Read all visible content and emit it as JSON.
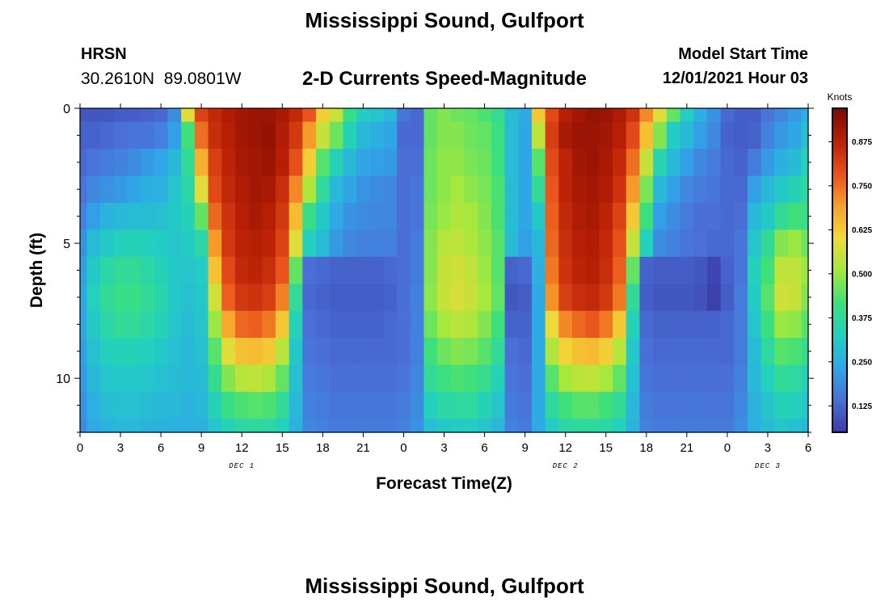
{
  "header": {
    "title": "Mississippi Sound, Gulfport",
    "station": "HRSN",
    "coordinates": "30.2610N  89.0801W",
    "subtitle": "2-D Currents Speed-Magnitude",
    "model_start_label": "Model Start Time",
    "model_start_value": "12/01/2021 Hour 03"
  },
  "footer": {
    "title": "Mississippi Sound, Gulfport"
  },
  "colors": {
    "colormap": [
      "#3b3aa6",
      "#4a70d8",
      "#2fa8e8",
      "#22d0c0",
      "#3de07a",
      "#a6e83c",
      "#f2d93a",
      "#f7a02a",
      "#e8501b",
      "#b81f05",
      "#7a0a02"
    ]
  },
  "chart_data": {
    "type": "heatmap",
    "xlabel": "Forecast Time(Z)",
    "ylabel": "Depth (ft)",
    "colorbar_label": "Knots",
    "x_range": [
      0,
      54
    ],
    "y_range": [
      0,
      12
    ],
    "y_inverted": true,
    "x_tick_labels": [
      "0",
      "3",
      "6",
      "9",
      "12",
      "15",
      "18",
      "21",
      "0",
      "3",
      "6",
      "9",
      "12",
      "15",
      "18",
      "21",
      "0",
      "3",
      "6"
    ],
    "y_tick_labels": [
      "0",
      "5",
      "10"
    ],
    "date_labels": [
      {
        "label": "DEC 1",
        "hour": 12
      },
      {
        "label": "DEC 2",
        "hour": 36
      },
      {
        "label": "DEC 3",
        "hour": 51
      }
    ],
    "colorbar_range": [
      0.05,
      0.97
    ],
    "colorbar_ticks": [
      "0.125",
      "0.250",
      "0.375",
      "0.500",
      "0.625",
      "0.750",
      "0.875"
    ],
    "colorbar_tick_values": [
      0.125,
      0.25,
      0.375,
      0.5,
      0.625,
      0.75,
      0.875
    ],
    "depths_ft": [
      0,
      1,
      2,
      3,
      4,
      5,
      6,
      7,
      8,
      9,
      10,
      11,
      12
    ],
    "hours": [
      0,
      1,
      2,
      3,
      4,
      5,
      6,
      7,
      8,
      9,
      10,
      11,
      12,
      13,
      14,
      15,
      16,
      17,
      18,
      19,
      20,
      21,
      22,
      23,
      24,
      25,
      26,
      27,
      28,
      29,
      30,
      31,
      32,
      33,
      34,
      35,
      36,
      37,
      38,
      39,
      40,
      41,
      42,
      43,
      44,
      45,
      46,
      47,
      48,
      49,
      50,
      51,
      52,
      53,
      54
    ],
    "speed_knots": [
      [
        0.1,
        0.1,
        0.1,
        0.11,
        0.11,
        0.12,
        0.13,
        0.19,
        0.58,
        0.81,
        0.86,
        0.89,
        0.91,
        0.92,
        0.92,
        0.9,
        0.86,
        0.78,
        0.62,
        0.55,
        0.4,
        0.32,
        0.3,
        0.27,
        0.15,
        0.13,
        0.45,
        0.48,
        0.46,
        0.45,
        0.43,
        0.39,
        0.28,
        0.24,
        0.63,
        0.8,
        0.88,
        0.91,
        0.93,
        0.92,
        0.89,
        0.84,
        0.72,
        0.58,
        0.45,
        0.32,
        0.25,
        0.2,
        0.13,
        0.11,
        0.11,
        0.15,
        0.18,
        0.21,
        0.25
      ],
      [
        0.12,
        0.12,
        0.13,
        0.14,
        0.15,
        0.15,
        0.17,
        0.22,
        0.42,
        0.75,
        0.85,
        0.88,
        0.91,
        0.92,
        0.93,
        0.89,
        0.83,
        0.7,
        0.55,
        0.46,
        0.34,
        0.27,
        0.25,
        0.23,
        0.13,
        0.13,
        0.45,
        0.48,
        0.48,
        0.46,
        0.45,
        0.41,
        0.28,
        0.23,
        0.54,
        0.82,
        0.9,
        0.92,
        0.92,
        0.91,
        0.88,
        0.8,
        0.64,
        0.48,
        0.32,
        0.27,
        0.22,
        0.18,
        0.12,
        0.11,
        0.12,
        0.17,
        0.21,
        0.23,
        0.29
      ],
      [
        0.13,
        0.15,
        0.16,
        0.17,
        0.19,
        0.21,
        0.23,
        0.27,
        0.38,
        0.67,
        0.82,
        0.87,
        0.9,
        0.91,
        0.92,
        0.88,
        0.79,
        0.62,
        0.44,
        0.34,
        0.27,
        0.23,
        0.22,
        0.21,
        0.14,
        0.14,
        0.46,
        0.49,
        0.49,
        0.47,
        0.46,
        0.41,
        0.28,
        0.23,
        0.44,
        0.8,
        0.87,
        0.91,
        0.92,
        0.9,
        0.86,
        0.75,
        0.55,
        0.35,
        0.27,
        0.22,
        0.18,
        0.16,
        0.13,
        0.12,
        0.16,
        0.21,
        0.25,
        0.28,
        0.33
      ],
      [
        0.15,
        0.18,
        0.2,
        0.21,
        0.23,
        0.25,
        0.26,
        0.3,
        0.36,
        0.58,
        0.8,
        0.86,
        0.89,
        0.91,
        0.9,
        0.85,
        0.72,
        0.52,
        0.37,
        0.27,
        0.23,
        0.2,
        0.19,
        0.18,
        0.14,
        0.15,
        0.46,
        0.49,
        0.51,
        0.49,
        0.47,
        0.43,
        0.28,
        0.23,
        0.38,
        0.78,
        0.87,
        0.9,
        0.91,
        0.89,
        0.84,
        0.7,
        0.47,
        0.27,
        0.22,
        0.18,
        0.16,
        0.15,
        0.13,
        0.13,
        0.22,
        0.27,
        0.31,
        0.34,
        0.37
      ],
      [
        0.17,
        0.22,
        0.26,
        0.27,
        0.28,
        0.28,
        0.29,
        0.31,
        0.34,
        0.45,
        0.76,
        0.84,
        0.88,
        0.9,
        0.88,
        0.83,
        0.65,
        0.4,
        0.31,
        0.24,
        0.2,
        0.19,
        0.18,
        0.18,
        0.14,
        0.15,
        0.47,
        0.5,
        0.52,
        0.51,
        0.48,
        0.43,
        0.28,
        0.23,
        0.31,
        0.77,
        0.86,
        0.89,
        0.9,
        0.87,
        0.81,
        0.63,
        0.41,
        0.22,
        0.19,
        0.16,
        0.14,
        0.14,
        0.13,
        0.14,
        0.27,
        0.31,
        0.38,
        0.42,
        0.4
      ],
      [
        0.2,
        0.28,
        0.31,
        0.33,
        0.34,
        0.33,
        0.32,
        0.3,
        0.32,
        0.36,
        0.7,
        0.83,
        0.87,
        0.88,
        0.87,
        0.81,
        0.58,
        0.33,
        0.28,
        0.21,
        0.18,
        0.17,
        0.17,
        0.17,
        0.14,
        0.16,
        0.48,
        0.53,
        0.54,
        0.52,
        0.49,
        0.44,
        0.28,
        0.22,
        0.27,
        0.76,
        0.85,
        0.88,
        0.89,
        0.86,
        0.79,
        0.55,
        0.33,
        0.19,
        0.17,
        0.15,
        0.14,
        0.13,
        0.13,
        0.15,
        0.3,
        0.38,
        0.48,
        0.5,
        0.46
      ],
      [
        0.22,
        0.31,
        0.36,
        0.38,
        0.38,
        0.36,
        0.34,
        0.31,
        0.3,
        0.32,
        0.64,
        0.8,
        0.86,
        0.87,
        0.85,
        0.78,
        0.45,
        0.14,
        0.13,
        0.12,
        0.12,
        0.12,
        0.12,
        0.13,
        0.14,
        0.16,
        0.48,
        0.55,
        0.56,
        0.54,
        0.5,
        0.44,
        0.12,
        0.13,
        0.25,
        0.74,
        0.84,
        0.87,
        0.88,
        0.85,
        0.77,
        0.45,
        0.12,
        0.11,
        0.11,
        0.11,
        0.1,
        0.07,
        0.12,
        0.15,
        0.33,
        0.42,
        0.54,
        0.54,
        0.5
      ],
      [
        0.23,
        0.33,
        0.38,
        0.4,
        0.4,
        0.38,
        0.35,
        0.31,
        0.29,
        0.31,
        0.56,
        0.77,
        0.83,
        0.84,
        0.82,
        0.73,
        0.38,
        0.13,
        0.12,
        0.11,
        0.11,
        0.11,
        0.11,
        0.12,
        0.14,
        0.17,
        0.49,
        0.55,
        0.57,
        0.55,
        0.51,
        0.45,
        0.1,
        0.11,
        0.24,
        0.71,
        0.82,
        0.85,
        0.86,
        0.83,
        0.74,
        0.38,
        0.11,
        0.1,
        0.1,
        0.1,
        0.09,
        0.06,
        0.11,
        0.16,
        0.32,
        0.44,
        0.56,
        0.55,
        0.48
      ],
      [
        0.23,
        0.31,
        0.36,
        0.38,
        0.38,
        0.36,
        0.34,
        0.3,
        0.28,
        0.3,
        0.5,
        0.68,
        0.76,
        0.77,
        0.74,
        0.63,
        0.34,
        0.14,
        0.13,
        0.12,
        0.12,
        0.12,
        0.12,
        0.13,
        0.14,
        0.17,
        0.46,
        0.51,
        0.53,
        0.52,
        0.48,
        0.42,
        0.12,
        0.12,
        0.24,
        0.6,
        0.72,
        0.76,
        0.78,
        0.74,
        0.63,
        0.34,
        0.13,
        0.12,
        0.12,
        0.12,
        0.12,
        0.12,
        0.13,
        0.16,
        0.3,
        0.41,
        0.5,
        0.49,
        0.44
      ],
      [
        0.22,
        0.29,
        0.33,
        0.34,
        0.34,
        0.33,
        0.31,
        0.29,
        0.27,
        0.29,
        0.44,
        0.58,
        0.64,
        0.65,
        0.63,
        0.53,
        0.31,
        0.15,
        0.14,
        0.13,
        0.13,
        0.13,
        0.13,
        0.13,
        0.14,
        0.17,
        0.42,
        0.46,
        0.48,
        0.47,
        0.44,
        0.38,
        0.14,
        0.13,
        0.24,
        0.52,
        0.61,
        0.64,
        0.65,
        0.62,
        0.53,
        0.31,
        0.14,
        0.13,
        0.13,
        0.13,
        0.13,
        0.13,
        0.13,
        0.16,
        0.28,
        0.37,
        0.44,
        0.43,
        0.39
      ],
      [
        0.21,
        0.27,
        0.3,
        0.31,
        0.31,
        0.3,
        0.29,
        0.28,
        0.27,
        0.28,
        0.39,
        0.48,
        0.53,
        0.54,
        0.52,
        0.45,
        0.29,
        0.16,
        0.15,
        0.14,
        0.14,
        0.14,
        0.14,
        0.14,
        0.15,
        0.18,
        0.38,
        0.41,
        0.43,
        0.42,
        0.39,
        0.34,
        0.15,
        0.14,
        0.24,
        0.44,
        0.51,
        0.53,
        0.54,
        0.51,
        0.45,
        0.29,
        0.15,
        0.14,
        0.14,
        0.14,
        0.14,
        0.14,
        0.14,
        0.17,
        0.27,
        0.33,
        0.38,
        0.37,
        0.34
      ],
      [
        0.2,
        0.25,
        0.28,
        0.29,
        0.29,
        0.28,
        0.27,
        0.27,
        0.26,
        0.27,
        0.34,
        0.4,
        0.43,
        0.44,
        0.43,
        0.38,
        0.27,
        0.17,
        0.16,
        0.15,
        0.15,
        0.15,
        0.15,
        0.15,
        0.16,
        0.19,
        0.33,
        0.36,
        0.37,
        0.37,
        0.34,
        0.3,
        0.16,
        0.15,
        0.24,
        0.37,
        0.42,
        0.44,
        0.44,
        0.42,
        0.38,
        0.27,
        0.16,
        0.15,
        0.15,
        0.15,
        0.15,
        0.15,
        0.15,
        0.18,
        0.26,
        0.3,
        0.34,
        0.33,
        0.3
      ],
      [
        0.19,
        0.24,
        0.26,
        0.27,
        0.27,
        0.26,
        0.26,
        0.26,
        0.25,
        0.26,
        0.3,
        0.34,
        0.36,
        0.37,
        0.36,
        0.33,
        0.26,
        0.18,
        0.17,
        0.16,
        0.16,
        0.16,
        0.16,
        0.16,
        0.17,
        0.2,
        0.29,
        0.31,
        0.32,
        0.32,
        0.3,
        0.27,
        0.17,
        0.16,
        0.24,
        0.32,
        0.36,
        0.37,
        0.37,
        0.36,
        0.33,
        0.26,
        0.17,
        0.16,
        0.16,
        0.16,
        0.16,
        0.16,
        0.16,
        0.19,
        0.25,
        0.28,
        0.3,
        0.29,
        0.27
      ]
    ]
  }
}
